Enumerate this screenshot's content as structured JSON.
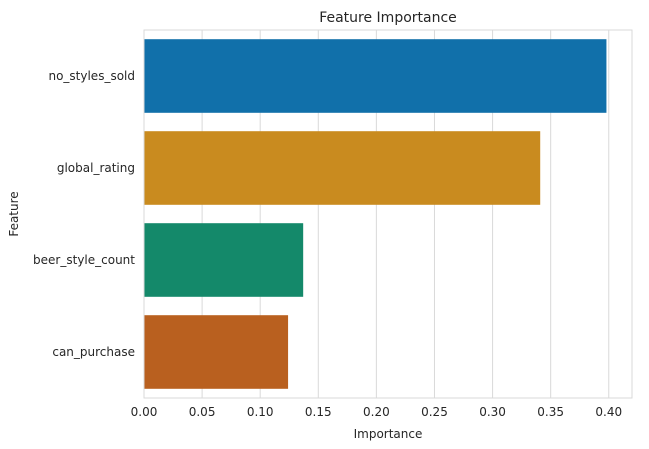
{
  "chart_data": {
    "type": "bar",
    "orientation": "horizontal",
    "title": "Feature Importance",
    "xlabel": "Importance",
    "ylabel": "Feature",
    "categories": [
      "no_styles_sold",
      "global_rating",
      "beer_style_count",
      "can_purchase"
    ],
    "values": [
      0.398,
      0.341,
      0.137,
      0.124
    ],
    "colors": [
      "#1170aa",
      "#c98b1f",
      "#14896a",
      "#b9601f"
    ],
    "xlim": [
      0,
      0.42
    ],
    "xticks": [
      0.0,
      0.05,
      0.1,
      0.15,
      0.2,
      0.25,
      0.3,
      0.35,
      0.4
    ],
    "xtick_labels": [
      "0.00",
      "0.05",
      "0.10",
      "0.15",
      "0.20",
      "0.25",
      "0.30",
      "0.35",
      "0.40"
    ],
    "grid": true,
    "legend": "none"
  }
}
